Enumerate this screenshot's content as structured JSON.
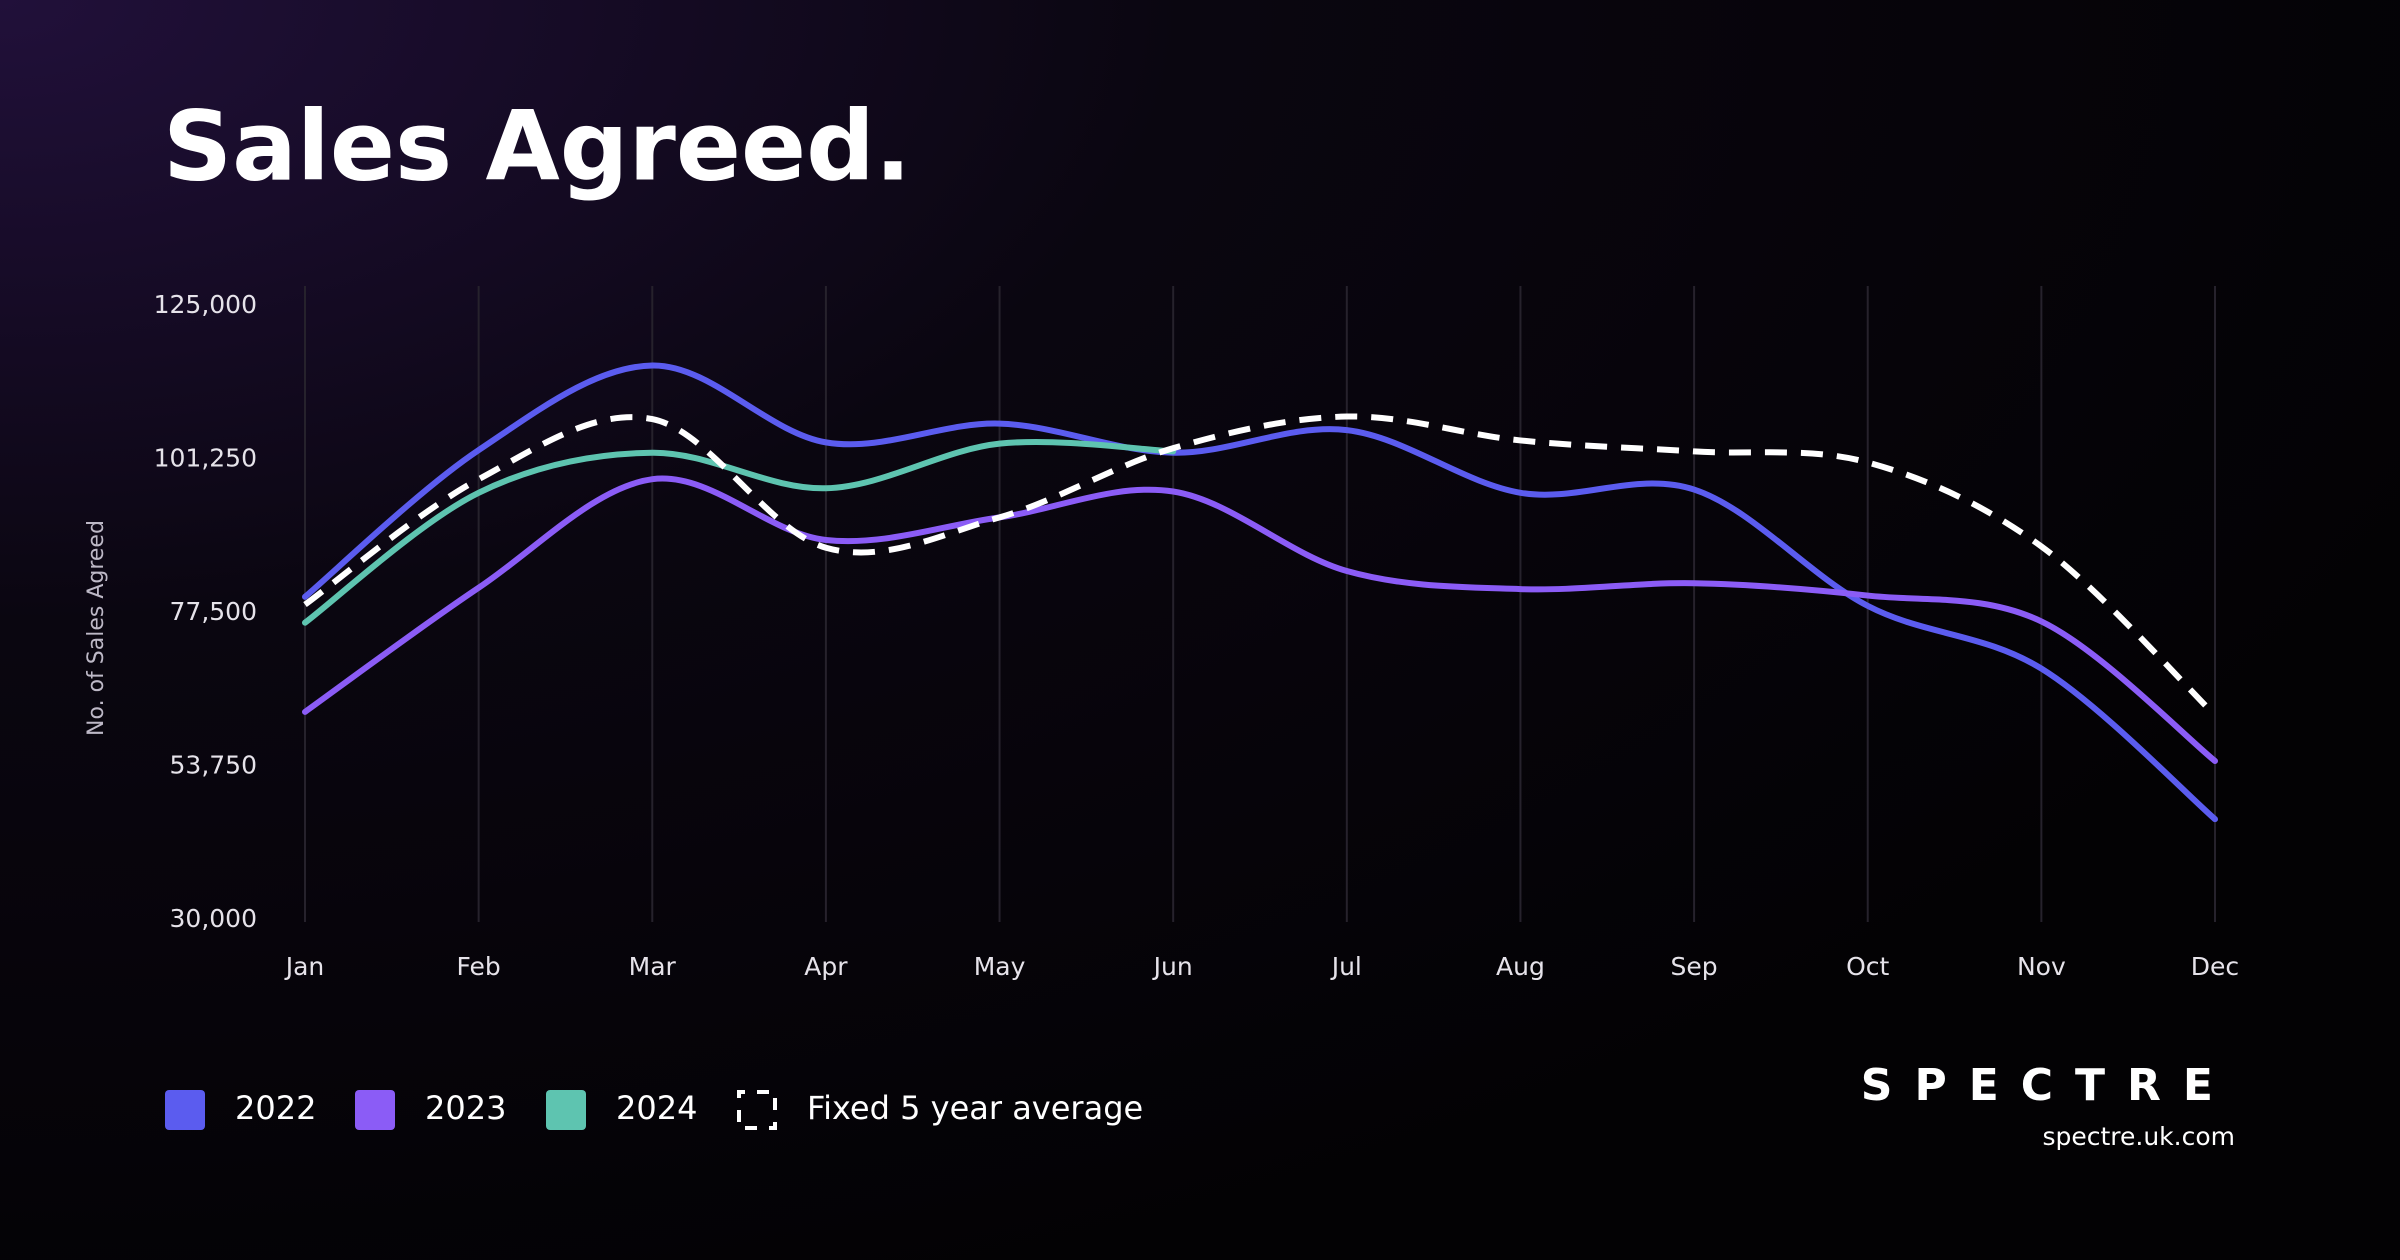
{
  "chart_data": {
    "type": "line",
    "title": "Sales Agreed.",
    "y_label": "No. of Sales Agreed",
    "categories": [
      "Jan",
      "Feb",
      "Mar",
      "Apr",
      "May",
      "Jun",
      "Jul",
      "Aug",
      "Sep",
      "Oct",
      "Nov",
      "Dec"
    ],
    "series": [
      {
        "name": "2022",
        "color": "#5b5cef",
        "values": [
          80000,
          102700,
          115800,
          103900,
          106800,
          102300,
          105800,
          96100,
          96600,
          78600,
          68900,
          45600
        ]
      },
      {
        "name": "2023",
        "color": "#8b5cf6",
        "values": [
          62200,
          81400,
          98200,
          88800,
          92300,
          96300,
          84000,
          81200,
          82100,
          80200,
          76200,
          54600
        ]
      },
      {
        "name": "2024",
        "color": "#5ec4b0",
        "values": [
          76000,
          96100,
          102300,
          96800,
          103700,
          102500,
          null,
          null,
          null,
          null,
          null,
          null
        ]
      },
      {
        "name": "Fixed 5 year average",
        "color": "#ffffff",
        "dashed": true,
        "values": [
          78800,
          98200,
          107500,
          87600,
          92300,
          103000,
          107900,
          104200,
          102500,
          100800,
          87800,
          61700
        ]
      }
    ],
    "ylim": [
      30000,
      125000
    ],
    "yticks": [
      {
        "value": 30000,
        "label": "30,000"
      },
      {
        "value": 53750,
        "label": "53,750"
      },
      {
        "value": 77500,
        "label": "77,500"
      },
      {
        "value": 101250,
        "label": "101,250"
      },
      {
        "value": 125000,
        "label": "125,000"
      }
    ],
    "grid": true,
    "brand": "SPECTRE",
    "url": "spectre.uk.com"
  }
}
